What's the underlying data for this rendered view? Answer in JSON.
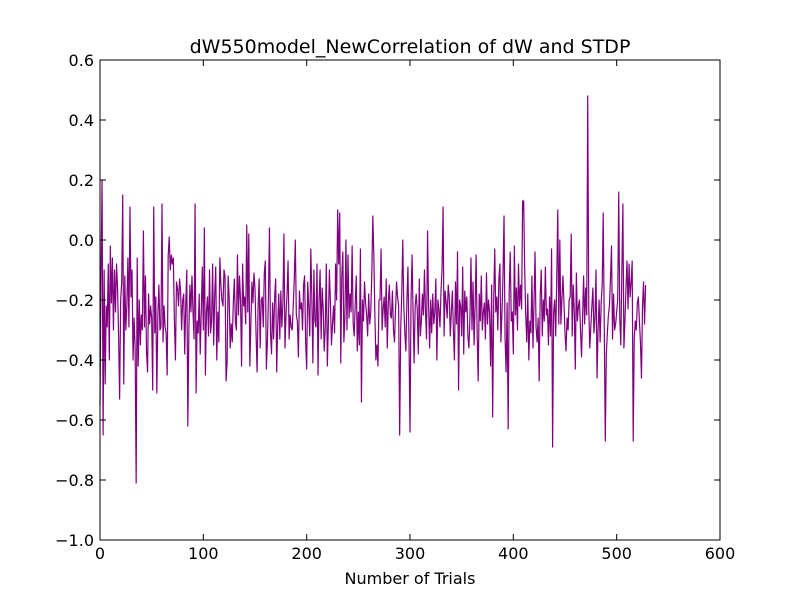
{
  "chart_data": {
    "type": "line",
    "title": "dW550model_NewCorrelation of dW and STDP",
    "xlabel": "Number of Trials",
    "ylabel": "",
    "xlim": [
      0,
      600
    ],
    "ylim": [
      -1.0,
      0.6
    ],
    "xticks": [
      0,
      100,
      200,
      300,
      400,
      500,
      600
    ],
    "xtick_labels": [
      "0",
      "100",
      "200",
      "300",
      "400",
      "500",
      "600"
    ],
    "yticks": [
      -1.0,
      -0.8,
      -0.6,
      -0.4,
      -0.2,
      0.0,
      0.2,
      0.4,
      0.6
    ],
    "ytick_labels": [
      "−1.0",
      "−0.8",
      "−0.6",
      "−0.4",
      "−0.2",
      "0.0",
      "0.2",
      "0.4",
      "0.6"
    ],
    "grid": false,
    "series": [
      {
        "color": "#800080",
        "x_start": 0,
        "x_step": 1,
        "values": [
          -0.55,
          -0.12,
          0.2,
          -0.65,
          -0.1,
          -0.48,
          -0.22,
          -0.29,
          -0.08,
          -0.4,
          -0.02,
          -0.21,
          -0.06,
          -0.3,
          -0.1,
          -0.24,
          -0.08,
          -0.16,
          -0.32,
          -0.53,
          -0.2,
          -0.14,
          0.15,
          -0.48,
          -0.12,
          -0.3,
          -0.22,
          -0.06,
          -0.29,
          0.11,
          -0.19,
          -0.1,
          -0.4,
          -0.26,
          -0.36,
          -0.81,
          -0.06,
          -0.42,
          -0.2,
          -0.35,
          -0.25,
          -0.3,
          0.03,
          -0.29,
          -0.12,
          -0.37,
          -0.44,
          -0.18,
          -0.28,
          -0.22,
          -0.26,
          -0.5,
          0.11,
          -0.31,
          -0.19,
          -0.51,
          -0.25,
          -0.15,
          -0.3,
          -0.29,
          0.12,
          -0.34,
          -0.22,
          -0.29,
          -0.31,
          -0.45,
          -0.05,
          0.01,
          -0.1,
          -0.05,
          -0.08,
          -0.06,
          -0.27,
          -0.4,
          -0.14,
          -0.16,
          -0.22,
          -0.13,
          -0.17,
          -0.3,
          -0.2,
          -0.18,
          -0.38,
          -0.21,
          -0.1,
          -0.62,
          -0.3,
          -0.15,
          -0.24,
          -0.12,
          -0.24,
          -0.33,
          0.12,
          -0.51,
          -0.27,
          -0.31,
          -0.18,
          -0.38,
          -0.24,
          -0.09,
          -0.3,
          0.04,
          -0.45,
          -0.24,
          -0.19,
          -0.32,
          -0.1,
          -0.31,
          -0.27,
          -0.08,
          -0.35,
          -0.18,
          -0.09,
          -0.4,
          -0.24,
          -0.34,
          -0.06,
          -0.15,
          -0.2,
          -0.22,
          -0.1,
          -0.12,
          -0.47,
          -0.41,
          -0.12,
          -0.19,
          -0.36,
          -0.28,
          -0.34,
          -0.21,
          -0.13,
          -0.27,
          -0.3,
          -0.05,
          -0.25,
          -0.12,
          -0.2,
          -0.42,
          -0.08,
          -0.22,
          -0.19,
          -0.28,
          0.05,
          -0.24,
          0.02,
          -0.42,
          -0.28,
          -0.14,
          -0.21,
          -0.11,
          -0.16,
          -0.31,
          -0.44,
          -0.22,
          -0.13,
          -0.36,
          -0.2,
          -0.19,
          -0.29,
          -0.11,
          -0.07,
          -0.43,
          -0.34,
          -0.19,
          0.04,
          -0.31,
          -0.38,
          -0.21,
          -0.33,
          -0.19,
          -0.13,
          -0.44,
          -0.28,
          -0.18,
          -0.33,
          -0.17,
          -0.29,
          -0.21,
          0.02,
          -0.36,
          -0.25,
          -0.18,
          -0.07,
          -0.33,
          -0.25,
          -0.29,
          -0.3,
          -0.22,
          -0.13,
          0.0,
          -0.25,
          -0.27,
          -0.39,
          -0.17,
          -0.23,
          -0.21,
          -0.3,
          -0.15,
          -0.12,
          -0.34,
          -0.43,
          -0.14,
          -0.22,
          -0.32,
          -0.03,
          -0.19,
          -0.41,
          -0.1,
          -0.27,
          -0.29,
          -0.08,
          -0.45,
          -0.2,
          -0.1,
          -0.33,
          -0.16,
          -0.23,
          -0.37,
          -0.29,
          -0.08,
          -0.42,
          -0.28,
          -0.1,
          -0.21,
          -0.35,
          -0.28,
          -0.22,
          -0.31,
          -0.08,
          -0.2,
          0.1,
          -0.08,
          0.09,
          -0.41,
          -0.12,
          -0.04,
          -0.34,
          -0.26,
          0.0,
          -0.3,
          -0.05,
          -0.26,
          -0.18,
          -0.24,
          -0.02,
          -0.28,
          -0.32,
          -0.21,
          -0.12,
          -0.37,
          -0.24,
          -0.35,
          -0.03,
          -0.54,
          -0.2,
          -0.27,
          -0.14,
          -0.21,
          -0.25,
          -0.32,
          -0.18,
          -0.28,
          -0.24,
          -0.12,
          0.08,
          -0.05,
          -0.25,
          -0.4,
          -0.35,
          -0.42,
          -0.2,
          -0.2,
          -0.03,
          -0.3,
          -0.23,
          -0.19,
          -0.29,
          -0.13,
          -0.36,
          -0.21,
          -0.15,
          -0.25,
          -0.26,
          -0.17,
          -0.3,
          -0.34,
          -0.23,
          -0.14,
          -0.19,
          -0.22,
          -0.65,
          -0.3,
          -0.18,
          0.0,
          -0.22,
          -0.31,
          -0.37,
          -0.2,
          -0.09,
          -0.33,
          -0.64,
          -0.2,
          -0.05,
          -0.25,
          -0.41,
          -0.22,
          -0.18,
          -0.23,
          -0.38,
          -0.13,
          -0.32,
          -0.27,
          -0.18,
          -0.25,
          -0.1,
          -0.24,
          -0.33,
          0.03,
          -0.22,
          -0.36,
          -0.2,
          -0.31,
          -0.18,
          -0.28,
          -0.24,
          -0.13,
          -0.4,
          -0.2,
          -0.23,
          -0.29,
          -0.17,
          -0.1,
          0.11,
          -0.32,
          -0.17,
          -0.21,
          -0.26,
          -0.15,
          -0.19,
          -0.32,
          -0.24,
          -0.17,
          -0.3,
          -0.4,
          -0.14,
          -0.28,
          -0.04,
          -0.5,
          -0.2,
          -0.22,
          -0.32,
          -0.09,
          -0.38,
          -0.17,
          -0.24,
          -0.19,
          -0.32,
          -0.36,
          -0.26,
          -0.06,
          -0.3,
          -0.14,
          -0.35,
          -0.22,
          -0.05,
          -0.32,
          -0.47,
          -0.18,
          -0.27,
          -0.12,
          -0.3,
          -0.24,
          -0.21,
          -0.33,
          -0.11,
          -0.28,
          -0.2,
          -0.24,
          -0.42,
          -0.15,
          -0.59,
          -0.2,
          -0.03,
          -0.24,
          -0.19,
          -0.3,
          -0.13,
          -0.08,
          -0.34,
          -0.24,
          -0.12,
          0.08,
          -0.33,
          -0.44,
          -0.21,
          -0.63,
          -0.17,
          -0.04,
          -0.27,
          -0.24,
          -0.38,
          -0.02,
          -0.25,
          -0.16,
          -0.3,
          -0.08,
          -0.22,
          -0.15,
          -0.23,
          0.13,
          0.13,
          -0.1,
          -0.25,
          -0.34,
          -0.18,
          -0.4,
          -0.27,
          -0.31,
          -0.12,
          -0.36,
          -0.21,
          -0.04,
          -0.29,
          -0.34,
          -0.26,
          -0.47,
          -0.19,
          -0.1,
          -0.32,
          -0.2,
          -0.27,
          -0.09,
          -0.25,
          -0.23,
          -0.35,
          -0.19,
          -0.32,
          -0.03,
          -0.69,
          -0.24,
          -0.2,
          -0.32,
          -0.13,
          0.1,
          -0.28,
          0.0,
          -0.28,
          -0.2,
          -0.12,
          -0.21,
          -0.31,
          -0.37,
          -0.26,
          -0.3,
          -0.2,
          -0.19,
          0.02,
          -0.32,
          -0.15,
          -0.24,
          -0.43,
          -0.11,
          -0.27,
          -0.22,
          -0.2,
          -0.3,
          -0.39,
          -0.26,
          -0.12,
          -0.28,
          -0.16,
          -0.25,
          0.48,
          -0.23,
          -0.36,
          -0.29,
          -0.22,
          -0.16,
          -0.31,
          -0.26,
          -0.1,
          -0.46,
          -0.3,
          -0.2,
          -0.34,
          -0.21,
          -0.15,
          0.09,
          -0.29,
          -0.67,
          -0.38,
          -0.31,
          -0.25,
          -0.22,
          -0.13,
          -0.02,
          -0.33,
          -0.18,
          -0.3,
          -0.28,
          -0.24,
          -0.2,
          0.16,
          -0.26,
          -0.35,
          -0.11,
          0.12,
          -0.36,
          -0.27,
          -0.16,
          -0.07,
          -0.23,
          -0.08,
          -0.19,
          -0.14,
          -0.07,
          -0.67,
          -0.33,
          -0.27,
          -0.3,
          -0.21,
          -0.19,
          -0.27,
          -0.34,
          -0.46,
          -0.22,
          -0.14,
          -0.28,
          -0.15
        ]
      }
    ]
  }
}
